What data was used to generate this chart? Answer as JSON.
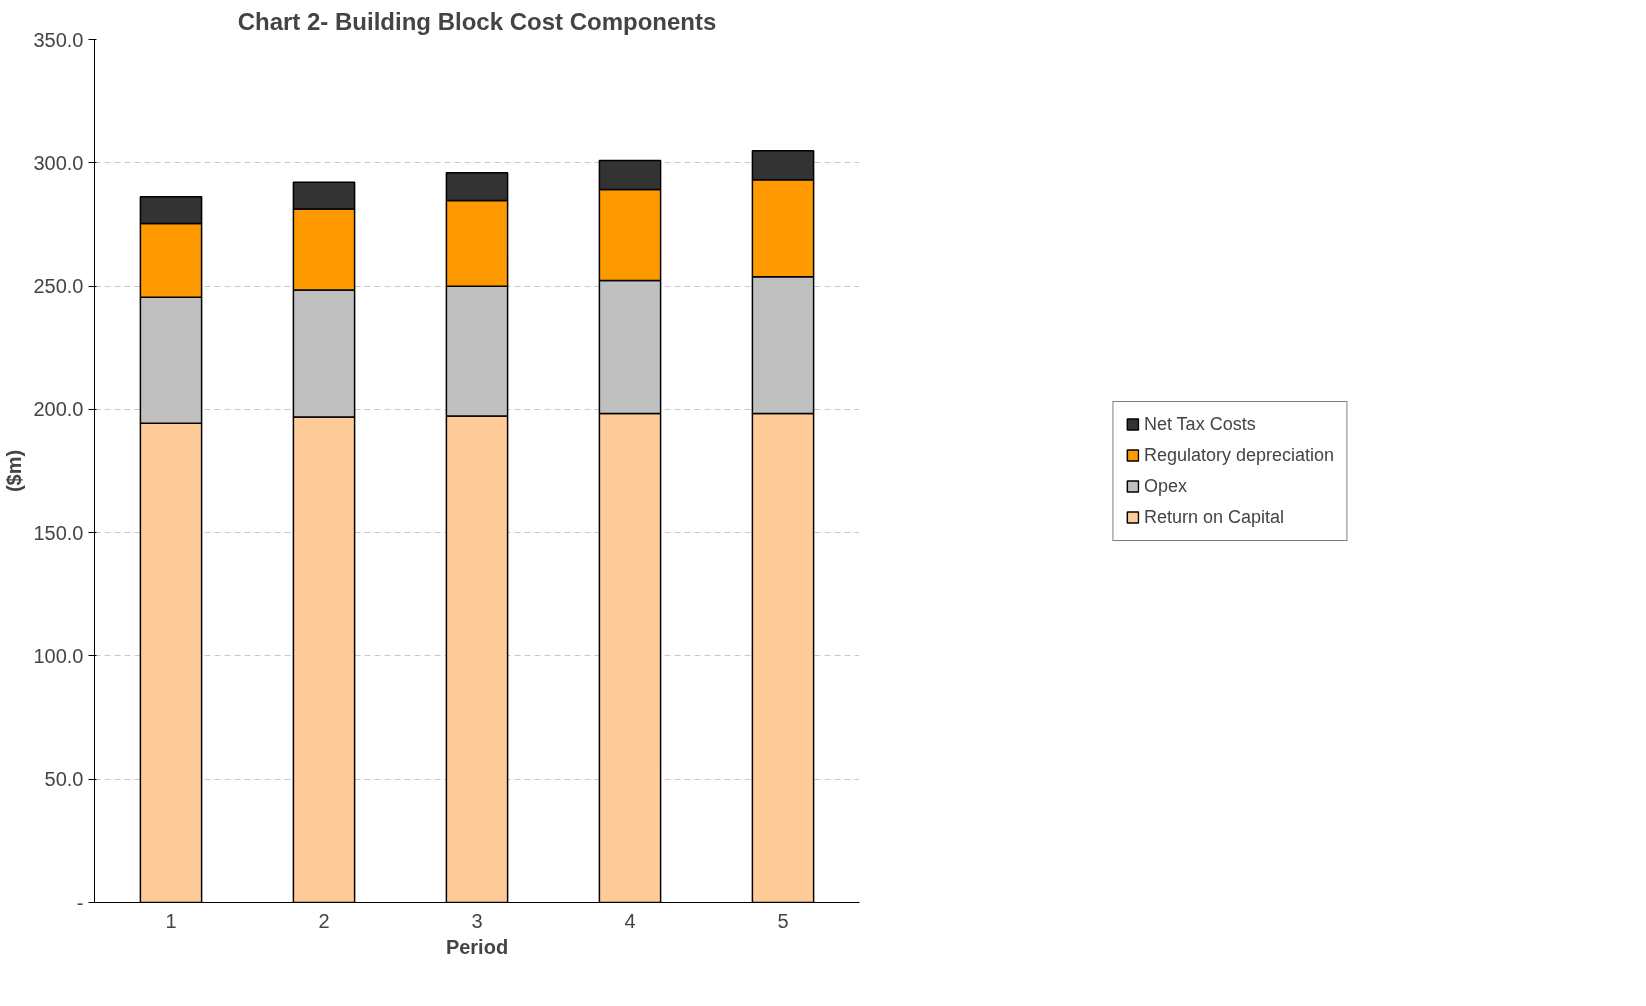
{
  "chart_data": {
    "type": "bar",
    "title": "Chart 2- Building Block Cost Components",
    "xlabel": "Period",
    "ylabel": "($m)",
    "categories": [
      "1",
      "2",
      "3",
      "4",
      "5"
    ],
    "stacked": true,
    "series": [
      {
        "name": "Return on Capital",
        "color": "#ffcc99",
        "values": [
          194.4,
          196.9,
          197.3,
          198.3,
          198.3
        ]
      },
      {
        "name": "Opex",
        "color": "#c0c0c0",
        "values": [
          51.1,
          51.5,
          52.6,
          54.0,
          55.5
        ]
      },
      {
        "name": "Regulatory depreciation",
        "color": "#ff9900",
        "values": [
          29.9,
          32.9,
          34.8,
          36.9,
          39.3
        ]
      },
      {
        "name": "Net Tax Costs",
        "color": "#333333",
        "values": [
          10.8,
          10.8,
          11.3,
          11.7,
          11.8
        ]
      }
    ],
    "ylim": [
      0,
      350
    ],
    "yticks": [
      {
        "value": 0,
        "label": "-"
      },
      {
        "value": 50,
        "label": "50.0"
      },
      {
        "value": 100,
        "label": "100.0"
      },
      {
        "value": 150,
        "label": "150.0"
      },
      {
        "value": 200,
        "label": "200.0"
      },
      {
        "value": 250,
        "label": "250.0"
      },
      {
        "value": 300,
        "label": "300.0"
      },
      {
        "value": 350,
        "label": "350.0"
      }
    ],
    "grid": "y",
    "legend": "right"
  }
}
